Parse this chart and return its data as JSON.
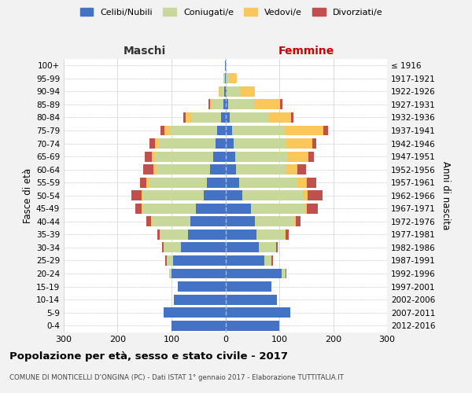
{
  "age_groups": [
    "0-4",
    "5-9",
    "10-14",
    "15-19",
    "20-24",
    "25-29",
    "30-34",
    "35-39",
    "40-44",
    "45-49",
    "50-54",
    "55-59",
    "60-64",
    "65-69",
    "70-74",
    "75-79",
    "80-84",
    "85-89",
    "90-94",
    "95-99",
    "100+"
  ],
  "birth_years": [
    "2012-2016",
    "2007-2011",
    "2002-2006",
    "1997-2001",
    "1992-1996",
    "1987-1991",
    "1982-1986",
    "1977-1981",
    "1972-1976",
    "1967-1971",
    "1962-1966",
    "1957-1961",
    "1952-1956",
    "1947-1951",
    "1942-1946",
    "1937-1941",
    "1932-1936",
    "1927-1931",
    "1922-1926",
    "1917-1921",
    "≤ 1916"
  ],
  "maschi_celibe": [
    100,
    115,
    95,
    88,
    100,
    97,
    82,
    70,
    65,
    55,
    40,
    35,
    28,
    22,
    18,
    15,
    8,
    4,
    2,
    1,
    1
  ],
  "maschi_coniugato": [
    0,
    0,
    0,
    0,
    4,
    12,
    32,
    52,
    72,
    98,
    112,
    108,
    100,
    108,
    105,
    90,
    55,
    20,
    8,
    2,
    0
  ],
  "maschi_vedovo": [
    0,
    0,
    0,
    0,
    0,
    0,
    0,
    0,
    1,
    2,
    3,
    4,
    5,
    7,
    8,
    8,
    10,
    5,
    2,
    0,
    0
  ],
  "maschi_divorziato": [
    0,
    0,
    0,
    0,
    1,
    2,
    3,
    5,
    8,
    12,
    20,
    12,
    20,
    12,
    10,
    8,
    5,
    2,
    0,
    0,
    0
  ],
  "femmine_nubile": [
    100,
    120,
    95,
    85,
    105,
    72,
    62,
    58,
    55,
    48,
    32,
    25,
    20,
    18,
    15,
    12,
    8,
    5,
    2,
    1,
    1
  ],
  "femmine_coniugata": [
    0,
    0,
    0,
    0,
    7,
    14,
    32,
    52,
    72,
    98,
    112,
    108,
    92,
    98,
    98,
    98,
    72,
    48,
    25,
    5,
    0
  ],
  "femmine_vedova": [
    0,
    0,
    0,
    0,
    0,
    0,
    0,
    2,
    3,
    5,
    8,
    18,
    22,
    38,
    48,
    72,
    42,
    48,
    28,
    15,
    0
  ],
  "femmine_divorziata": [
    0,
    0,
    0,
    0,
    1,
    2,
    3,
    5,
    10,
    20,
    28,
    18,
    15,
    10,
    8,
    8,
    5,
    5,
    0,
    0,
    0
  ],
  "colors": {
    "celibe": "#4472C4",
    "coniugato": "#c7d89a",
    "vedovo": "#FAC85A",
    "divorziato": "#C0504D"
  },
  "xlim": 300,
  "title": "Popolazione per età, sesso e stato civile - 2017",
  "subtitle": "COMUNE DI MONTICELLI D'ONGINA (PC) - Dati ISTAT 1° gennaio 2017 - Elaborazione TUTTITALIA.IT",
  "label_maschi": "Maschi",
  "label_femmine": "Femmine",
  "ylabel_left": "Fasce di età",
  "ylabel_right": "Anni di nascita",
  "bg_color": "#f2f2f2",
  "plot_bg": "#ffffff",
  "legend": [
    "Celibi/Nubili",
    "Coniugati/e",
    "Vedovi/e",
    "Divorziati/e"
  ]
}
